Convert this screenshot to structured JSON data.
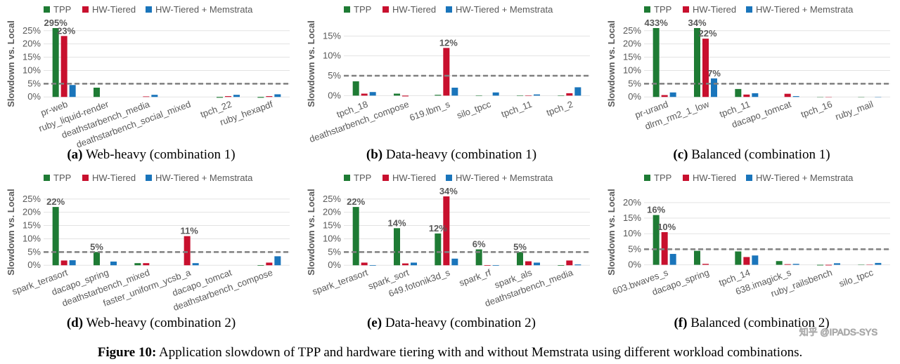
{
  "chart_data": [
    {
      "type": "bar",
      "y_label": "Slowdown vs. Local",
      "caption": {
        "label": "(a)",
        "text": "Web-heavy (combination 1)"
      },
      "categories": [
        "pr-web",
        "ruby_liquid-render",
        "deathstarbench_media",
        "deathstarbench_social_mixed",
        "tpch_22",
        "ruby_hexapdf"
      ],
      "series": [
        {
          "name": "TPP",
          "color": "#1e7b34",
          "values": [
            295,
            3.5,
            0,
            0,
            -0.3,
            -0.3
          ],
          "value_labels": [
            "295%",
            null,
            null,
            null,
            null,
            null
          ]
        },
        {
          "name": "HW-Tiered",
          "color": "#c8102e",
          "values": [
            23,
            0,
            0.2,
            0,
            0.3,
            0.3
          ],
          "value_labels": [
            "23%",
            null,
            null,
            null,
            null,
            null
          ]
        },
        {
          "name": "HW-Tiered + Memstrata",
          "color": "#1a75bb",
          "values": [
            4.5,
            0,
            0.8,
            0,
            0.8,
            1
          ],
          "value_labels": [
            null,
            null,
            null,
            null,
            null,
            null
          ]
        }
      ],
      "ylim": [
        -1,
        26
      ],
      "yticks": [
        {
          "value": 0,
          "label": "0%"
        },
        {
          "value": 5,
          "label": "5%"
        },
        {
          "value": 10,
          "label": "10%"
        },
        {
          "value": 15,
          "label": "15%"
        },
        {
          "value": 20,
          "label": "20%"
        },
        {
          "value": 25,
          "label": "25%"
        }
      ],
      "reference_line": 5,
      "grid": true
    },
    {
      "type": "bar",
      "y_label": "Slowdown vs. Local",
      "caption": {
        "label": "(b)",
        "text": "Data-heavy (combination 1)"
      },
      "categories": [
        "tpch_18",
        "deathstarbench_compose",
        "619.lbm_s",
        "silo_tpcc",
        "tpch_11",
        "tpch_2"
      ],
      "series": [
        {
          "name": "TPP",
          "color": "#1e7b34",
          "values": [
            3.6,
            0.5,
            0.2,
            -0.1,
            -0.1,
            -0.1
          ],
          "value_labels": [
            null,
            null,
            null,
            null,
            null,
            null
          ]
        },
        {
          "name": "HW-Tiered",
          "color": "#c8102e",
          "values": [
            0.5,
            -0.2,
            12,
            0,
            -0.1,
            0.6
          ],
          "value_labels": [
            null,
            null,
            "12%",
            null,
            null,
            null
          ]
        },
        {
          "name": "HW-Tiered + Memstrata",
          "color": "#1a75bb",
          "values": [
            0.9,
            0,
            2,
            0.8,
            0.3,
            2.1
          ],
          "value_labels": [
            null,
            null,
            null,
            null,
            null,
            null
          ]
        }
      ],
      "ylim": [
        -1,
        17
      ],
      "yticks": [
        {
          "value": 0,
          "label": "0%"
        },
        {
          "value": 5,
          "label": "5%"
        },
        {
          "value": 10,
          "label": "10%"
        },
        {
          "value": 15,
          "label": "15%"
        }
      ],
      "reference_line": 5,
      "grid": true
    },
    {
      "type": "bar",
      "y_label": "Slowdown vs. Local",
      "caption": {
        "label": "(c)",
        "text": "Balanced (combination 1)"
      },
      "categories": [
        "pr-urand",
        "dlrm_rm2_1_low",
        "tpch_11",
        "dacapo_tomcat",
        "tpch_16",
        "ruby_mail"
      ],
      "series": [
        {
          "name": "TPP",
          "color": "#1e7b34",
          "values": [
            433,
            34,
            3,
            0,
            -0.1,
            -0.1
          ],
          "value_labels": [
            "433%",
            "34%",
            null,
            null,
            null,
            null
          ]
        },
        {
          "name": "HW-Tiered",
          "color": "#c8102e",
          "values": [
            0.7,
            22,
            0.9,
            1.2,
            -0.1,
            0
          ],
          "value_labels": [
            null,
            "22%",
            null,
            null,
            null,
            null
          ]
        },
        {
          "name": "HW-Tiered + Memstrata",
          "color": "#1a75bb",
          "values": [
            1.7,
            7,
            1.4,
            0.3,
            0,
            -0.1
          ],
          "value_labels": [
            null,
            "7%",
            null,
            null,
            null,
            null
          ]
        }
      ],
      "ylim": [
        -1,
        26
      ],
      "yticks": [
        {
          "value": 0,
          "label": "0%"
        },
        {
          "value": 5,
          "label": "5%"
        },
        {
          "value": 10,
          "label": "10%"
        },
        {
          "value": 15,
          "label": "15%"
        },
        {
          "value": 20,
          "label": "20%"
        },
        {
          "value": 25,
          "label": "25%"
        }
      ],
      "reference_line": 5,
      "grid": true
    },
    {
      "type": "bar",
      "y_label": "Slowdown vs. Local",
      "caption": {
        "label": "(d)",
        "text": "Web-heavy (combination 2)"
      },
      "categories": [
        "spark_terasort",
        "dacapo_spring",
        "deathstarbench_mixed",
        "faster_uniform_ycsb_a",
        "dacapo_tomcat",
        "deathstarbench_compose"
      ],
      "series": [
        {
          "name": "TPP",
          "color": "#1e7b34",
          "values": [
            22,
            5,
            0.8,
            0,
            0,
            -0.2
          ],
          "value_labels": [
            "22%",
            "5%",
            null,
            null,
            null,
            null
          ]
        },
        {
          "name": "HW-Tiered",
          "color": "#c8102e",
          "values": [
            1.8,
            0,
            0.8,
            11,
            0,
            1
          ],
          "value_labels": [
            null,
            null,
            null,
            "11%",
            null,
            null
          ]
        },
        {
          "name": "HW-Tiered + Memstrata",
          "color": "#1a75bb",
          "values": [
            1.9,
            1.4,
            0,
            0.8,
            0,
            3.4
          ],
          "value_labels": [
            null,
            null,
            null,
            null,
            null,
            null
          ]
        }
      ],
      "ylim": [
        -1,
        26
      ],
      "yticks": [
        {
          "value": 0,
          "label": "0%"
        },
        {
          "value": 5,
          "label": "5%"
        },
        {
          "value": 10,
          "label": "10%"
        },
        {
          "value": 15,
          "label": "15%"
        },
        {
          "value": 20,
          "label": "20%"
        },
        {
          "value": 25,
          "label": "25%"
        }
      ],
      "reference_line": 5,
      "grid": true
    },
    {
      "type": "bar",
      "y_label": "Slowdown vs. Local",
      "caption": {
        "label": "(e)",
        "text": "Data-heavy (combination 2)"
      },
      "categories": [
        "spark_terasort",
        "spark_sort",
        "649.fotonik3d_s",
        "spark_rf",
        "spark_als",
        "deathstarbench_media"
      ],
      "series": [
        {
          "name": "TPP",
          "color": "#1e7b34",
          "values": [
            22,
            14,
            12,
            6,
            5,
            -0.2
          ],
          "value_labels": [
            "22%",
            "14%",
            "12%",
            "6%",
            "5%",
            null
          ]
        },
        {
          "name": "HW-Tiered",
          "color": "#c8102e",
          "values": [
            1,
            0.7,
            34,
            -0.2,
            1.5,
            1.8
          ],
          "value_labels": [
            null,
            null,
            "34%",
            null,
            null,
            null
          ]
        },
        {
          "name": "HW-Tiered + Memstrata",
          "color": "#1a75bb",
          "values": [
            -0.2,
            1,
            2.5,
            -0.2,
            1,
            0.3
          ],
          "value_labels": [
            null,
            null,
            null,
            null,
            null,
            null
          ]
        }
      ],
      "ylim": [
        -1,
        26
      ],
      "yticks": [
        {
          "value": 0,
          "label": "0%"
        },
        {
          "value": 5,
          "label": "5%"
        },
        {
          "value": 10,
          "label": "10%"
        },
        {
          "value": 15,
          "label": "15%"
        },
        {
          "value": 20,
          "label": "20%"
        },
        {
          "value": 25,
          "label": "25%"
        }
      ],
      "reference_line": 5,
      "grid": true
    },
    {
      "type": "bar",
      "y_label": "Slowdown vs. Local",
      "caption": {
        "label": "(f)",
        "text": "Balanced (combination 2)"
      },
      "categories": [
        "603.bwaves_s",
        "dacapo_spring",
        "tpch_14",
        "638.imagick_s",
        "ruby_railsbench",
        "silo_tpcc"
      ],
      "series": [
        {
          "name": "TPP",
          "color": "#1e7b34",
          "values": [
            16,
            4.5,
            4.3,
            1.2,
            -0.2,
            -0.1
          ],
          "value_labels": [
            "16%",
            null,
            null,
            null,
            null,
            null
          ]
        },
        {
          "name": "HW-Tiered",
          "color": "#c8102e",
          "values": [
            10.5,
            0.3,
            2.5,
            0.2,
            -0.2,
            -0.1
          ],
          "value_labels": [
            "10%",
            null,
            null,
            null,
            null,
            null
          ]
        },
        {
          "name": "HW-Tiered + Memstrata",
          "color": "#1a75bb",
          "values": [
            3.5,
            0,
            3,
            0.3,
            0.5,
            0.6
          ],
          "value_labels": [
            null,
            null,
            null,
            null,
            null,
            null
          ]
        }
      ],
      "ylim": [
        -1,
        22
      ],
      "yticks": [
        {
          "value": 0,
          "label": "0%"
        },
        {
          "value": 5,
          "label": "5%"
        },
        {
          "value": 10,
          "label": "10%"
        },
        {
          "value": 15,
          "label": "15%"
        },
        {
          "value": 20,
          "label": "20%"
        }
      ],
      "reference_line": 5,
      "grid": true
    }
  ],
  "figure_caption": {
    "label": "Figure 10:",
    "text": "Application slowdown of TPP and hardware tiering with and without Memstrata using different workload combinations."
  },
  "watermark": "知乎 @IPADS-SYS"
}
